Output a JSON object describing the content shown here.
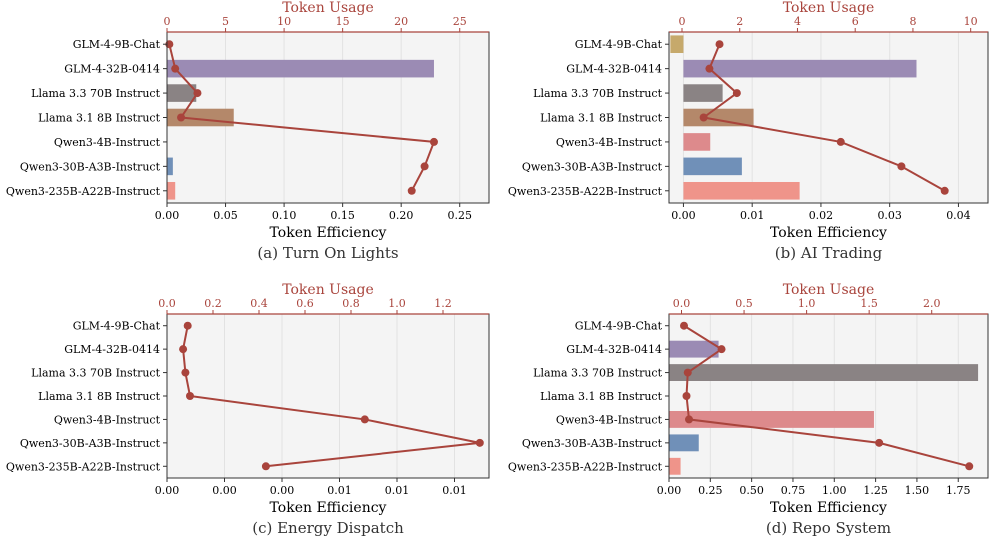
{
  "figure": {
    "token_line_color": "#a9443c",
    "model_colors": [
      "#c6a96b",
      "#9b8bb4",
      "#8a8384",
      "#b4886a",
      "#dd8a8c",
      "#7090b8",
      "#ef948a"
    ]
  },
  "chart_data": [
    {
      "type": "bar",
      "panel": "a",
      "caption": "(a) Turn On Lights",
      "categories": [
        "GLM-4-9B-Chat",
        "GLM-4-32B-0414",
        "Llama 3.3 70B Instruct",
        "Llama 3.1 8B Instruct",
        "Qwen3-4B-Instruct",
        "Qwen3-30B-A3B-Instruct",
        "Qwen3-235B-A22B-Instruct"
      ],
      "xlabel": "Token Efficiency",
      "top_xlabel": "Token Usage",
      "xlim": [
        0,
        0.275
      ],
      "xticks": [
        0,
        0.05,
        0.1,
        0.15,
        0.2,
        0.25
      ],
      "xtick_labels": [
        "0.00",
        "0.05",
        "0.10",
        "0.15",
        "0.20",
        "0.25"
      ],
      "efficiency": [
        0,
        0.228,
        0.025,
        0.057,
        0,
        0.005,
        0.007
      ],
      "top_xlim": [
        0,
        27.5
      ],
      "top_xticks": [
        0,
        5,
        10,
        15,
        20,
        25
      ],
      "top_xtick_labels": [
        "0",
        "5",
        "10",
        "15",
        "20",
        "25"
      ],
      "token_usage": [
        0.2,
        0.7,
        2.6,
        1.2,
        22.8,
        22.0,
        20.9
      ]
    },
    {
      "type": "bar",
      "panel": "b",
      "caption": "(b) AI Trading",
      "categories": [
        "GLM-4-9B-Chat",
        "GLM-4-32B-0414",
        "Llama 3.3 70B Instruct",
        "Llama 3.1 8B Instruct",
        "Qwen3-4B-Instruct",
        "Qwen3-30B-A3B-Instruct",
        "Qwen3-235B-A22B-Instruct"
      ],
      "xlabel": "Token Efficiency",
      "top_xlabel": "Token Usage",
      "xlim": [
        -0.0021,
        0.0443
      ],
      "xticks": [
        0,
        0.01,
        0.02,
        0.03,
        0.04
      ],
      "xtick_labels": [
        "0.00",
        "0.01",
        "0.02",
        "0.03",
        "0.04"
      ],
      "efficiency": [
        -0.0019,
        0.0339,
        0.0057,
        0.0102,
        0.0039,
        0.0085,
        0.0169
      ],
      "top_xlim": [
        -0.45,
        10.6
      ],
      "top_xticks": [
        0,
        2,
        4,
        6,
        8,
        10
      ],
      "top_xtick_labels": [
        "0",
        "2",
        "4",
        "6",
        "8",
        "10"
      ],
      "token_usage": [
        1.3,
        0.95,
        1.9,
        0.75,
        5.5,
        7.6,
        9.1
      ]
    },
    {
      "type": "bar",
      "panel": "c",
      "caption": "(c) Energy Dispatch",
      "categories": [
        "GLM-4-9B-Chat",
        "GLM-4-32B-0414",
        "Llama 3.3 70B Instruct",
        "Llama 3.1 8B Instruct",
        "Qwen3-4B-Instruct",
        "Qwen3-30B-A3B-Instruct",
        "Qwen3-235B-A22B-Instruct"
      ],
      "xlabel": "Token Efficiency",
      "top_xlabel": "Token Usage",
      "xlim": [
        0,
        1.4
      ],
      "xticks": [
        0,
        0.25,
        0.5,
        0.75,
        1.0,
        1.25
      ],
      "xtick_labels": [
        "0.00",
        "0.00",
        "0.00",
        "0.01",
        "0.01",
        "0.01"
      ],
      "efficiency": [
        0,
        0,
        0,
        0,
        0,
        0,
        0
      ],
      "top_xlim": [
        0,
        1.4
      ],
      "top_xticks": [
        0,
        0.2,
        0.4,
        0.6,
        0.8,
        1.0,
        1.2
      ],
      "top_xtick_labels": [
        "0.0",
        "0.2",
        "0.4",
        "0.6",
        "0.8",
        "1.0",
        "1.2"
      ],
      "token_usage": [
        0.09,
        0.07,
        0.08,
        0.1,
        0.86,
        1.36,
        0.43
      ]
    },
    {
      "type": "bar",
      "panel": "d",
      "caption": "(d) Repo System",
      "categories": [
        "GLM-4-9B-Chat",
        "GLM-4-32B-0414",
        "Llama 3.3 70B Instruct",
        "Llama 3.1 8B Instruct",
        "Qwen3-4B-Instruct",
        "Qwen3-30B-A3B-Instruct",
        "Qwen3-235B-A22B-Instruct"
      ],
      "xlabel": "Token Efficiency",
      "top_xlabel": "Token Usage",
      "xlim": [
        0,
        1.93
      ],
      "xticks": [
        0,
        0.25,
        0.5,
        0.75,
        1.0,
        1.25,
        1.5,
        1.75
      ],
      "xtick_labels": [
        "0.00",
        "0.25",
        "0.50",
        "0.75",
        "1.00",
        "1.25",
        "1.50",
        "1.75"
      ],
      "efficiency": [
        0,
        0.3,
        1.87,
        0,
        1.24,
        0.18,
        0.07
      ],
      "top_xlim": [
        -0.1,
        2.45
      ],
      "top_xticks": [
        0,
        0.5,
        1.0,
        1.5,
        2.0
      ],
      "top_xtick_labels": [
        "0.0",
        "0.5",
        "1.0",
        "1.5",
        "2.0"
      ],
      "token_usage": [
        0.02,
        0.32,
        0.05,
        0.04,
        0.06,
        1.58,
        2.3
      ]
    }
  ]
}
